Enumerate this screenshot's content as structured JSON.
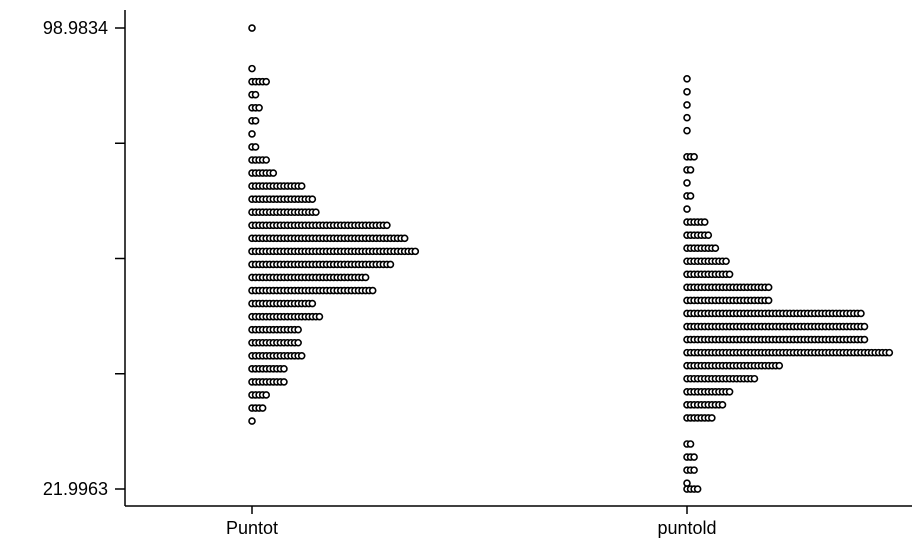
{
  "chart_data": {
    "type": "dotplot",
    "ylim": [
      21.9963,
      98.9834
    ],
    "yticks": [
      21.9963,
      41.2431,
      60.4898,
      79.7366,
      98.9834
    ],
    "ytick_labels": [
      "21.9963",
      "",
      "",
      "",
      "98.9834"
    ],
    "categories": [
      "Puntot",
      "puntold"
    ],
    "bin_width": 2.18,
    "series": [
      {
        "category": "Puntot",
        "bins": [
          {
            "y": 98.98,
            "count": 1
          },
          {
            "y": 92.2,
            "count": 1
          },
          {
            "y": 90.02,
            "count": 5
          },
          {
            "y": 87.84,
            "count": 2
          },
          {
            "y": 85.66,
            "count": 3
          },
          {
            "y": 83.48,
            "count": 2
          },
          {
            "y": 81.3,
            "count": 1
          },
          {
            "y": 79.12,
            "count": 2
          },
          {
            "y": 76.94,
            "count": 5
          },
          {
            "y": 74.76,
            "count": 7
          },
          {
            "y": 72.58,
            "count": 15
          },
          {
            "y": 70.4,
            "count": 18
          },
          {
            "y": 68.22,
            "count": 19
          },
          {
            "y": 66.04,
            "count": 39
          },
          {
            "y": 63.86,
            "count": 44
          },
          {
            "y": 61.68,
            "count": 47
          },
          {
            "y": 59.5,
            "count": 40
          },
          {
            "y": 57.32,
            "count": 33
          },
          {
            "y": 55.14,
            "count": 35
          },
          {
            "y": 52.96,
            "count": 18
          },
          {
            "y": 50.78,
            "count": 20
          },
          {
            "y": 48.6,
            "count": 14
          },
          {
            "y": 46.42,
            "count": 14
          },
          {
            "y": 44.24,
            "count": 15
          },
          {
            "y": 42.06,
            "count": 10
          },
          {
            "y": 39.88,
            "count": 10
          },
          {
            "y": 37.7,
            "count": 5
          },
          {
            "y": 35.52,
            "count": 4
          },
          {
            "y": 33.34,
            "count": 1
          }
        ]
      },
      {
        "category": "puntold",
        "bins": [
          {
            "y": 90.5,
            "count": 1
          },
          {
            "y": 88.32,
            "count": 1
          },
          {
            "y": 86.14,
            "count": 1
          },
          {
            "y": 84.0,
            "count": 1
          },
          {
            "y": 81.83,
            "count": 1
          },
          {
            "y": 77.47,
            "count": 3
          },
          {
            "y": 75.29,
            "count": 2
          },
          {
            "y": 73.11,
            "count": 1
          },
          {
            "y": 70.93,
            "count": 2
          },
          {
            "y": 68.75,
            "count": 1
          },
          {
            "y": 66.57,
            "count": 6
          },
          {
            "y": 64.39,
            "count": 7
          },
          {
            "y": 62.21,
            "count": 9
          },
          {
            "y": 60.03,
            "count": 12
          },
          {
            "y": 57.85,
            "count": 13
          },
          {
            "y": 55.67,
            "count": 24
          },
          {
            "y": 53.49,
            "count": 24
          },
          {
            "y": 51.31,
            "count": 50
          },
          {
            "y": 49.13,
            "count": 51
          },
          {
            "y": 46.95,
            "count": 51
          },
          {
            "y": 44.77,
            "count": 58
          },
          {
            "y": 42.59,
            "count": 27
          },
          {
            "y": 40.41,
            "count": 20
          },
          {
            "y": 38.23,
            "count": 13
          },
          {
            "y": 36.05,
            "count": 11
          },
          {
            "y": 33.87,
            "count": 8
          },
          {
            "y": 29.51,
            "count": 2
          },
          {
            "y": 27.33,
            "count": 3
          },
          {
            "y": 25.15,
            "count": 3
          },
          {
            "y": 22.97,
            "count": 1
          },
          {
            "y": 21.99,
            "count": 4
          }
        ]
      }
    ]
  }
}
